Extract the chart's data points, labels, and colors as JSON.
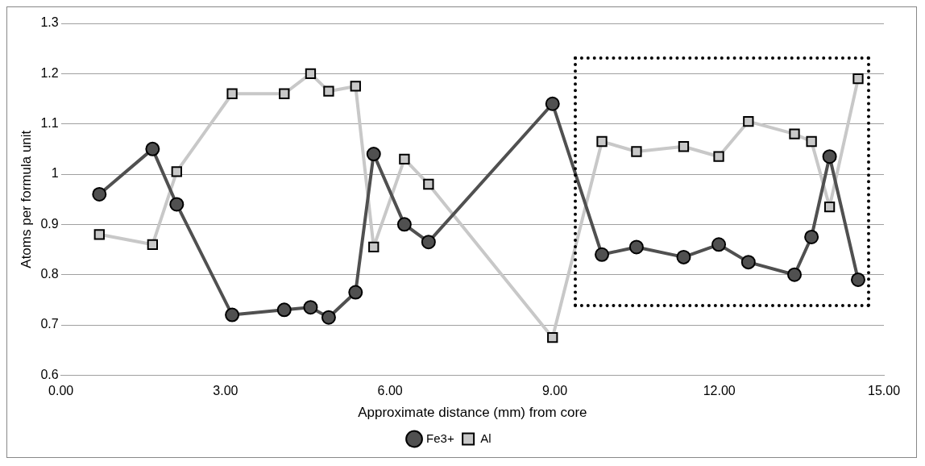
{
  "chart_data": {
    "type": "line",
    "xlabel": "Approximate distance (mm) from core",
    "ylabel": "Atoms per formula unit",
    "xlim": [
      0,
      15
    ],
    "xticks": [
      {
        "value": 0,
        "label": "0.00"
      },
      {
        "value": 3,
        "label": "3.00"
      },
      {
        "value": 6,
        "label": "6.00"
      },
      {
        "value": 9,
        "label": "9.00"
      },
      {
        "value": 12,
        "label": "12.00"
      },
      {
        "value": 15,
        "label": "15.00"
      }
    ],
    "ylim": [
      0.6,
      1.3
    ],
    "yticks": [
      0.6,
      0.7,
      0.8,
      0.9,
      1,
      1.1,
      1.2,
      1.3
    ],
    "grid": "y",
    "legend": "bottom",
    "line_style": "solid",
    "x": [
      0.7,
      1.67,
      2.11,
      3.12,
      4.07,
      4.55,
      4.88,
      5.37,
      5.7,
      6.26,
      6.7,
      8.96,
      9.86,
      10.49,
      11.35,
      11.99,
      12.53,
      13.37,
      13.68,
      14.01,
      14.53
    ],
    "series": [
      {
        "name": "Fe3+",
        "color": "#505050",
        "marker": "circle",
        "values": [
          0.96,
          1.05,
          0.94,
          0.72,
          0.73,
          0.735,
          0.715,
          0.765,
          1.04,
          0.9,
          0.865,
          1.14,
          0.84,
          0.855,
          0.835,
          0.86,
          0.825,
          0.8,
          0.875,
          1.035,
          0.79
        ]
      },
      {
        "name": "Al",
        "color": "#c8c8c8",
        "marker": "square",
        "values": [
          0.88,
          0.86,
          1.005,
          1.16,
          1.16,
          1.2,
          1.165,
          1.175,
          0.855,
          1.03,
          0.98,
          0.675,
          1.065,
          1.045,
          1.055,
          1.035,
          1.105,
          1.08,
          1.065,
          0.935,
          1.19
        ]
      }
    ]
  }
}
